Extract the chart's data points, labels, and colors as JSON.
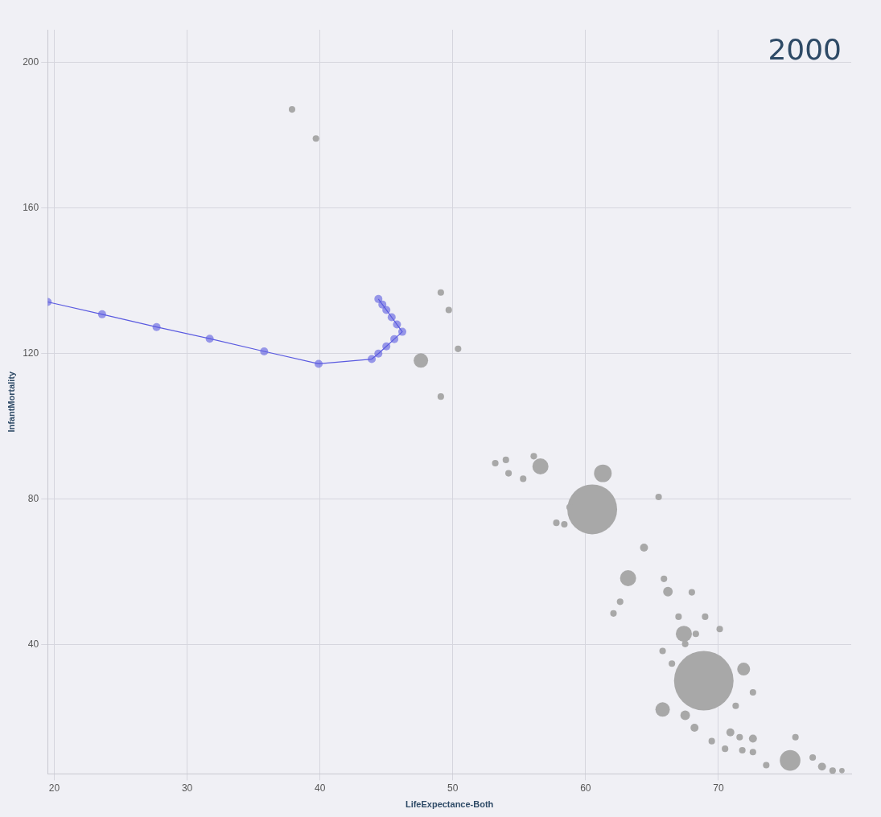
{
  "chart_data": {
    "type": "bubble",
    "xlabel": "LifeExpectance-Both",
    "ylabel": "InfantMortality",
    "annotations": [
      "2000"
    ],
    "xlim": [
      19.5,
      80
    ],
    "ylim": [
      4.5,
      209
    ],
    "xticks": [
      20,
      30,
      40,
      50,
      60,
      70
    ],
    "yticks": [
      40,
      80,
      120,
      160,
      200
    ],
    "grid": true,
    "legend": false,
    "series": [
      {
        "color": "#a8a8a8",
        "x": [
          37.9,
          39.7,
          49.1,
          49.7,
          50.4,
          47.6,
          49.1,
          53.2,
          54.0,
          54.2,
          55.3,
          56.1,
          56.6,
          61.3,
          60.5,
          58.8,
          57.8,
          58.4,
          65.5,
          64.4,
          63.2,
          65.9,
          66.2,
          68.0,
          62.6,
          62.1,
          67.0,
          69.0,
          67.4,
          68.3,
          70.1,
          67.5,
          65.8,
          66.5,
          68.9,
          71.9,
          72.6,
          65.8,
          67.5,
          71.3,
          68.2,
          69.5,
          70.9,
          71.6,
          72.6,
          70.5,
          71.8,
          72.6,
          73.6,
          75.4,
          75.8,
          77.1,
          77.8,
          78.6,
          79.3
        ],
        "values": [
          187.1,
          179.1,
          136.8,
          132.0,
          121.3,
          118.1,
          108.2,
          89.9,
          90.8,
          87.1,
          85.6,
          91.8,
          89.0,
          87.1,
          77.2,
          77.8,
          73.5,
          73.1,
          80.6,
          66.7,
          58.3,
          58.1,
          54.6,
          54.4,
          51.8,
          48.6,
          47.7,
          47.7,
          43.0,
          43.0,
          44.3,
          40.2,
          38.3,
          34.8,
          30.1,
          33.3,
          26.9,
          22.2,
          20.6,
          23.2,
          17.2,
          13.5,
          15.9,
          14.6,
          14.2,
          11.4,
          11.0,
          10.5,
          6.9,
          8.2,
          14.6,
          9.0,
          6.5,
          5.4,
          5.4
        ],
        "sizes": [
          0.012,
          0.012,
          0.012,
          0.012,
          0.012,
          0.059,
          0.012,
          0.012,
          0.012,
          0.012,
          0.012,
          0.012,
          0.073,
          0.088,
          0.7,
          0.012,
          0.012,
          0.012,
          0.012,
          0.018,
          0.073,
          0.012,
          0.026,
          0.012,
          0.012,
          0.012,
          0.012,
          0.012,
          0.073,
          0.012,
          0.012,
          0.012,
          0.012,
          0.012,
          1,
          0.047,
          0.012,
          0.059,
          0.026,
          0.012,
          0.018,
          0.012,
          0.018,
          0.012,
          0.018,
          0.012,
          0.012,
          0.012,
          0.012,
          0.12,
          0.012,
          0.012,
          0.018,
          0.012,
          0.008
        ]
      },
      {
        "type": "line",
        "color": "#5a5ae0",
        "marker": "circle",
        "x": [
          19.5,
          23.6,
          27.7,
          31.7,
          35.8,
          39.9,
          43.9,
          44.4,
          45.0,
          45.6,
          46.2,
          45.8,
          45.4,
          45.0,
          44.7,
          44.4
        ],
        "values": [
          134.2,
          130.8,
          127.3,
          124.1,
          120.6,
          117.2,
          118.5,
          120,
          122,
          124,
          126,
          128,
          130,
          132,
          133.5,
          135
        ]
      }
    ]
  }
}
